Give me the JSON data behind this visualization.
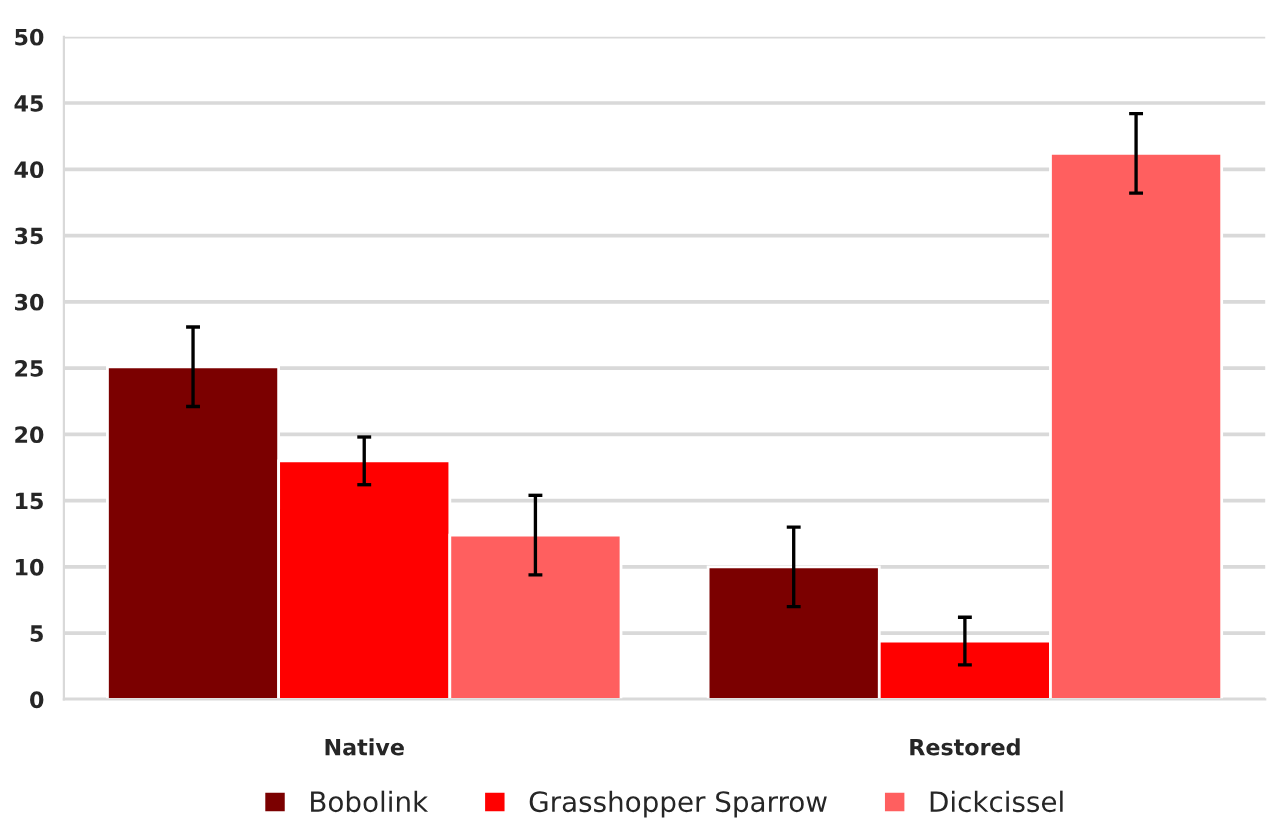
{
  "chart_data": {
    "type": "bar",
    "categories": [
      "Native",
      "Restored"
    ],
    "series": [
      {
        "name": "Bobolink",
        "color": "#7b0000",
        "values": [
          25.1,
          10
        ],
        "errors": [
          3,
          3
        ]
      },
      {
        "name": "Grasshopper Sparrow",
        "color": "#ff0000",
        "values": [
          18,
          4.4
        ],
        "errors": [
          1.8,
          1.8
        ]
      },
      {
        "name": "Dickcissel",
        "color": "#ff5f5f",
        "values": [
          12.4,
          41.2
        ],
        "errors": [
          3,
          3
        ]
      }
    ],
    "ylim": [
      0,
      50
    ],
    "yticks": [
      0,
      5,
      10,
      15,
      20,
      25,
      30,
      35,
      40,
      45,
      50
    ],
    "grid": "y",
    "legend": "bottom"
  }
}
